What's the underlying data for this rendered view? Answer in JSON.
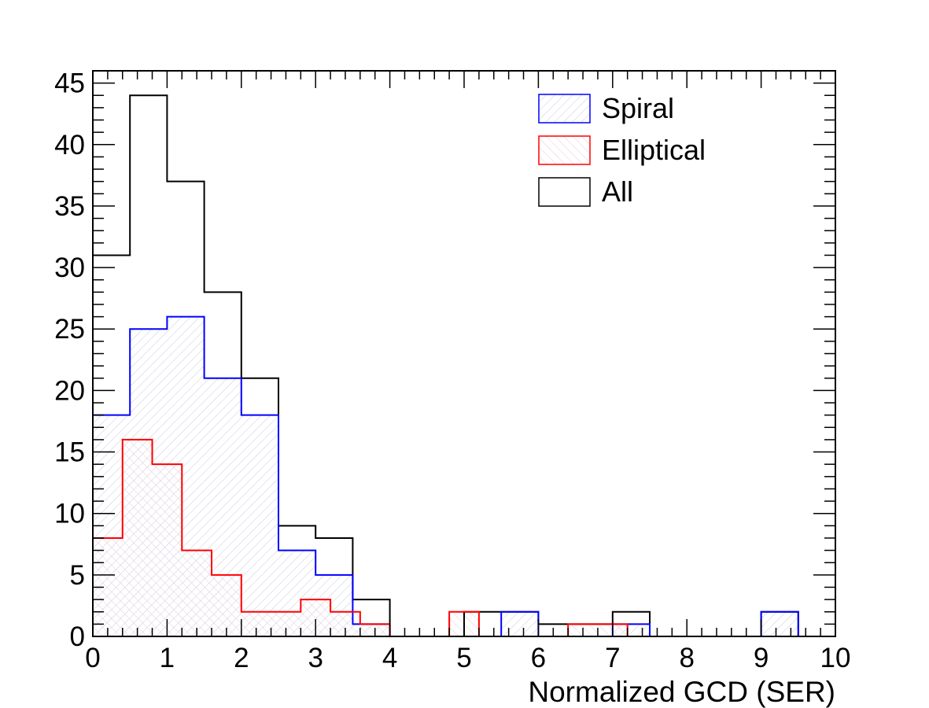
{
  "chart_data": {
    "type": "histogram",
    "xlabel": "Normalized GCD (SER)",
    "ylabel": "",
    "xlim": [
      0,
      10
    ],
    "ylim": [
      0,
      46
    ],
    "x_ticks": [
      "0",
      "1",
      "2",
      "3",
      "4",
      "5",
      "6",
      "7",
      "8",
      "9",
      "10"
    ],
    "y_ticks": [
      "0",
      "5",
      "10",
      "15",
      "20",
      "25",
      "30",
      "35",
      "40",
      "45"
    ],
    "series": [
      {
        "name": "Spiral",
        "color": "#0000ff",
        "fill": "hatched",
        "bin_width": 0.5,
        "bin_start": 0,
        "values": [
          18,
          25,
          26,
          21,
          18,
          7,
          5,
          1,
          0,
          0,
          0,
          2,
          0,
          0,
          1,
          0,
          0,
          0,
          2,
          0
        ]
      },
      {
        "name": "Elliptical",
        "color": "#ff0000",
        "fill": "hatched",
        "bin_width": 0.4,
        "bin_start": 0,
        "values": [
          8,
          16,
          14,
          7,
          5,
          2,
          2,
          3,
          2,
          1,
          0,
          0,
          2,
          0,
          0,
          0,
          1,
          1,
          0,
          0,
          0,
          0,
          0,
          0,
          0
        ]
      },
      {
        "name": "All",
        "color": "#000000",
        "fill": "none",
        "bin_width": 0.5,
        "bin_start": 0,
        "values": [
          31,
          44,
          37,
          28,
          21,
          9,
          8,
          3,
          0,
          0,
          2,
          2,
          1,
          1,
          2,
          0,
          0,
          0,
          2,
          0
        ]
      }
    ],
    "legend": {
      "placement": "top-right",
      "entries": [
        "Spiral",
        "Elliptical",
        "All"
      ]
    }
  }
}
